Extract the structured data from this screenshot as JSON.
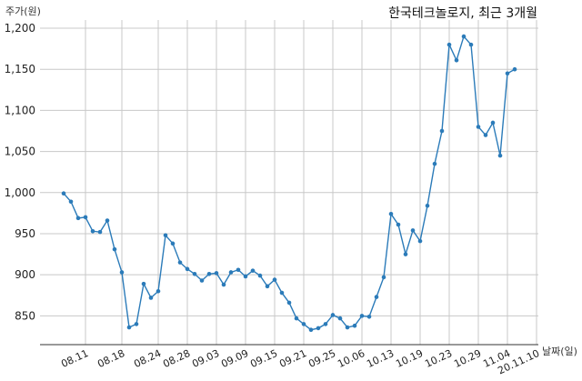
{
  "chart_data": {
    "type": "line",
    "title": "한국테크놀로지, 최근 3개월",
    "xlabel": "날짜(일)",
    "ylabel": "주가(원)",
    "ylim": [
      815,
      1210
    ],
    "y_ticks": [
      850,
      900,
      950,
      1000,
      1050,
      1100,
      1150,
      1200
    ],
    "y_tick_labels": [
      "850",
      "900",
      "950",
      "1,000",
      "1,050",
      "1,100",
      "1,150",
      "1,200"
    ],
    "x_tick_labels": [
      "08.11",
      "08.18",
      "08.24",
      "08.28",
      "09.03",
      "09.09",
      "09.15",
      "09.21",
      "09.25",
      "10.06",
      "10.13",
      "10.19",
      "10.23",
      "10.29",
      "11.04",
      "20.11.10"
    ],
    "x_tick_index": [
      3,
      8,
      13,
      17,
      21,
      25,
      29,
      33,
      37,
      41,
      45,
      49,
      53,
      57,
      61,
      65
    ],
    "grid": true,
    "series": [
      {
        "color": "#2b7bb9",
        "values": [
          999,
          989,
          969,
          970,
          953,
          952,
          966,
          931,
          903,
          836,
          840,
          889,
          872,
          880,
          948,
          938,
          915,
          907,
          901,
          893,
          901,
          902,
          888,
          903,
          906,
          898,
          905,
          899,
          886,
          894,
          878,
          866,
          847,
          840,
          833,
          835,
          840,
          851,
          847,
          836,
          838,
          850,
          849,
          873,
          897,
          974,
          961,
          925,
          954,
          941,
          984,
          1035,
          1075,
          1180,
          1161,
          1190,
          1180,
          1080,
          1070,
          1085,
          1045,
          1145,
          1150
        ]
      }
    ]
  }
}
